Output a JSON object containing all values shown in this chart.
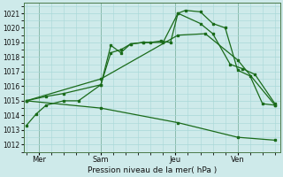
{
  "title": "",
  "xlabel": "Pression niveau de la mer( hPa )",
  "ylabel": "",
  "bg_color": "#ceeaea",
  "grid_color": "#a8d8d8",
  "line_color": "#1a6b1a",
  "ylim": [
    1011.5,
    1021.7
  ],
  "yticks": [
    1012,
    1013,
    1014,
    1015,
    1016,
    1017,
    1018,
    1019,
    1020,
    1021
  ],
  "xlim": [
    -0.1,
    10.2
  ],
  "xtick_positions": [
    0.5,
    3.0,
    6.0,
    8.5
  ],
  "xtick_labels": [
    "Mer",
    "Sam",
    "Jeu",
    "Ven"
  ],
  "vline_positions": [
    0.5,
    3.0,
    6.0,
    8.5
  ],
  "series": [
    {
      "x": [
        0.0,
        0.4,
        0.8,
        1.5,
        2.1,
        3.0,
        3.4,
        3.8,
        4.2,
        4.7,
        5.0,
        5.4,
        5.8,
        6.1,
        6.4,
        7.0,
        7.5,
        8.0,
        8.5,
        9.0,
        9.5,
        10.0
      ],
      "y": [
        1013.3,
        1014.1,
        1014.7,
        1015.0,
        1015.0,
        1016.1,
        1018.3,
        1018.5,
        1018.9,
        1019.0,
        1019.0,
        1019.1,
        1019.0,
        1021.0,
        1021.2,
        1021.1,
        1020.3,
        1020.0,
        1017.1,
        1016.7,
        1014.8,
        1014.7
      ]
    },
    {
      "x": [
        0.0,
        0.8,
        1.5,
        3.0,
        3.4,
        3.8,
        4.2,
        4.7,
        5.5,
        6.1,
        7.0,
        7.5,
        8.2,
        8.7,
        9.2,
        10.0
      ],
      "y": [
        1015.0,
        1015.3,
        1015.5,
        1016.1,
        1018.8,
        1018.3,
        1018.9,
        1019.0,
        1019.0,
        1021.0,
        1020.3,
        1019.6,
        1017.5,
        1017.2,
        1016.8,
        1014.8
      ]
    },
    {
      "x": [
        0.0,
        3.0,
        6.1,
        7.2,
        8.5,
        10.0
      ],
      "y": [
        1015.0,
        1016.5,
        1019.5,
        1019.6,
        1017.8,
        1014.7
      ]
    },
    {
      "x": [
        0.0,
        3.0,
        6.1,
        8.5,
        10.0
      ],
      "y": [
        1015.0,
        1014.5,
        1013.5,
        1012.5,
        1012.3
      ]
    }
  ]
}
